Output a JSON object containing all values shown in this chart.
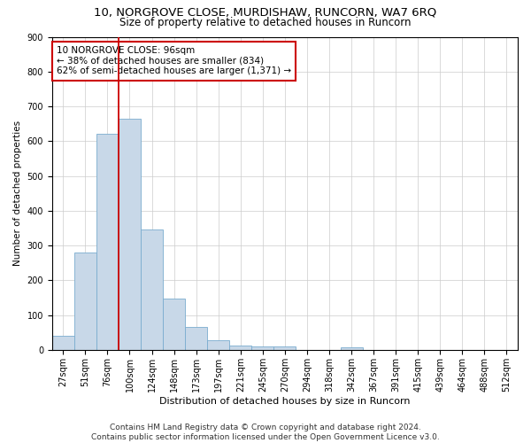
{
  "title": "10, NORGROVE CLOSE, MURDISHAW, RUNCORN, WA7 6RQ",
  "subtitle": "Size of property relative to detached houses in Runcorn",
  "xlabel": "Distribution of detached houses by size in Runcorn",
  "ylabel": "Number of detached properties",
  "bar_color": "#c8d8e8",
  "bar_edge_color": "#7aaccf",
  "vline_color": "#cc0000",
  "vline_x_index": 3,
  "annotation_text": "10 NORGROVE CLOSE: 96sqm\n← 38% of detached houses are smaller (834)\n62% of semi-detached houses are larger (1,371) →",
  "annotation_box_color": "white",
  "annotation_box_edge": "#cc0000",
  "categories": [
    "27sqm",
    "51sqm",
    "76sqm",
    "100sqm",
    "124sqm",
    "148sqm",
    "173sqm",
    "197sqm",
    "221sqm",
    "245sqm",
    "270sqm",
    "294sqm",
    "318sqm",
    "342sqm",
    "367sqm",
    "391sqm",
    "415sqm",
    "439sqm",
    "464sqm",
    "488sqm",
    "512sqm"
  ],
  "values": [
    40,
    280,
    620,
    665,
    345,
    147,
    65,
    27,
    12,
    10,
    10,
    0,
    0,
    8,
    0,
    0,
    0,
    0,
    0,
    0,
    0
  ],
  "ylim": [
    0,
    900
  ],
  "yticks": [
    0,
    100,
    200,
    300,
    400,
    500,
    600,
    700,
    800,
    900
  ],
  "background_color": "#ffffff",
  "grid_color": "#cccccc",
  "footer_text": "Contains HM Land Registry data © Crown copyright and database right 2024.\nContains public sector information licensed under the Open Government Licence v3.0.",
  "title_fontsize": 9.5,
  "subtitle_fontsize": 8.5,
  "ylabel_fontsize": 7.5,
  "xlabel_fontsize": 8,
  "tick_fontsize": 7,
  "annotation_fontsize": 7.5,
  "footer_fontsize": 6.5
}
